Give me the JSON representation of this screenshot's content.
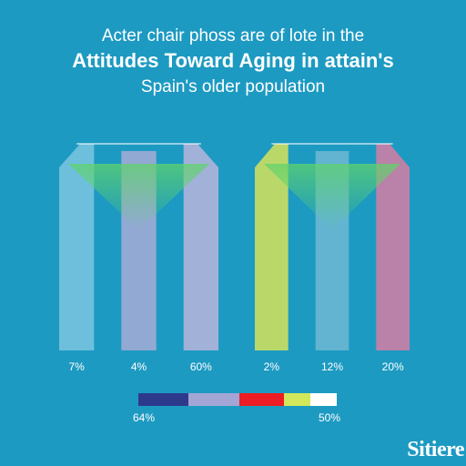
{
  "chart_data": {
    "type": "bar",
    "title_lines": [
      "Acter chair phoss are of lote in the",
      "Attitudes Toward Aging in attain's",
      "Spain's older population"
    ],
    "groups": [
      {
        "bars": [
          {
            "label": "7%",
            "color": "#7cc6e0"
          },
          {
            "label": "4%",
            "color": "#a7abd6"
          },
          {
            "label": "60%",
            "color": "#b9b5dc"
          }
        ]
      },
      {
        "bars": [
          {
            "label": "2%",
            "color": "#d6e35a"
          },
          {
            "label": "12%",
            "color": "#6fb8d4"
          },
          {
            "label": "20%",
            "color": "#d67ea3"
          }
        ]
      }
    ],
    "color_scale": {
      "colors": [
        "#2d3a8c",
        "#a3a5d4",
        "#ee1c24",
        "#d2e85a",
        "#ffffff"
      ],
      "min_label": "64%",
      "max_label": "50%"
    }
  },
  "logo_text": "Sitiere"
}
